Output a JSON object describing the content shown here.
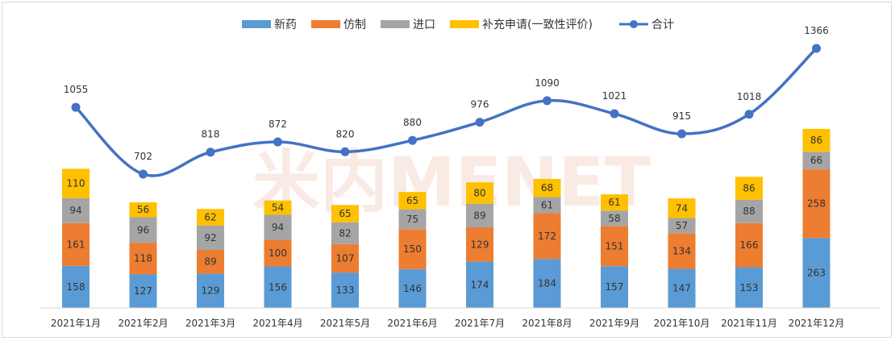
{
  "chart_data": {
    "type": "bar",
    "stacked": true,
    "categories": [
      "2021年1月",
      "2021年2月",
      "2021年3月",
      "2021年4月",
      "2021年5月",
      "2021年6月",
      "2021年7月",
      "2021年8月",
      "2021年9月",
      "2021年10月",
      "2021年11月",
      "2021年12月"
    ],
    "series": [
      {
        "name": "新药",
        "color": "#5b9bd5",
        "values": [
          158,
          127,
          129,
          156,
          133,
          146,
          174,
          184,
          157,
          147,
          153,
          263
        ]
      },
      {
        "name": "仿制",
        "color": "#ed7d31",
        "values": [
          161,
          118,
          89,
          100,
          107,
          150,
          129,
          172,
          151,
          134,
          166,
          258
        ]
      },
      {
        "name": "进口",
        "color": "#a5a5a5",
        "values": [
          94,
          96,
          92,
          94,
          82,
          75,
          89,
          61,
          58,
          57,
          88,
          66
        ]
      },
      {
        "name": "补充申请(一致性评价)",
        "color": "#ffc000",
        "values": [
          110,
          56,
          62,
          54,
          65,
          65,
          80,
          68,
          61,
          74,
          86,
          86
        ]
      }
    ],
    "line": {
      "name": "合计",
      "color": "#4472c4",
      "values": [
        1055,
        702,
        818,
        872,
        820,
        880,
        976,
        1090,
        1021,
        915,
        1018,
        1366
      ]
    },
    "legend_position": "top",
    "grid": false
  },
  "watermark": "米内MENET"
}
